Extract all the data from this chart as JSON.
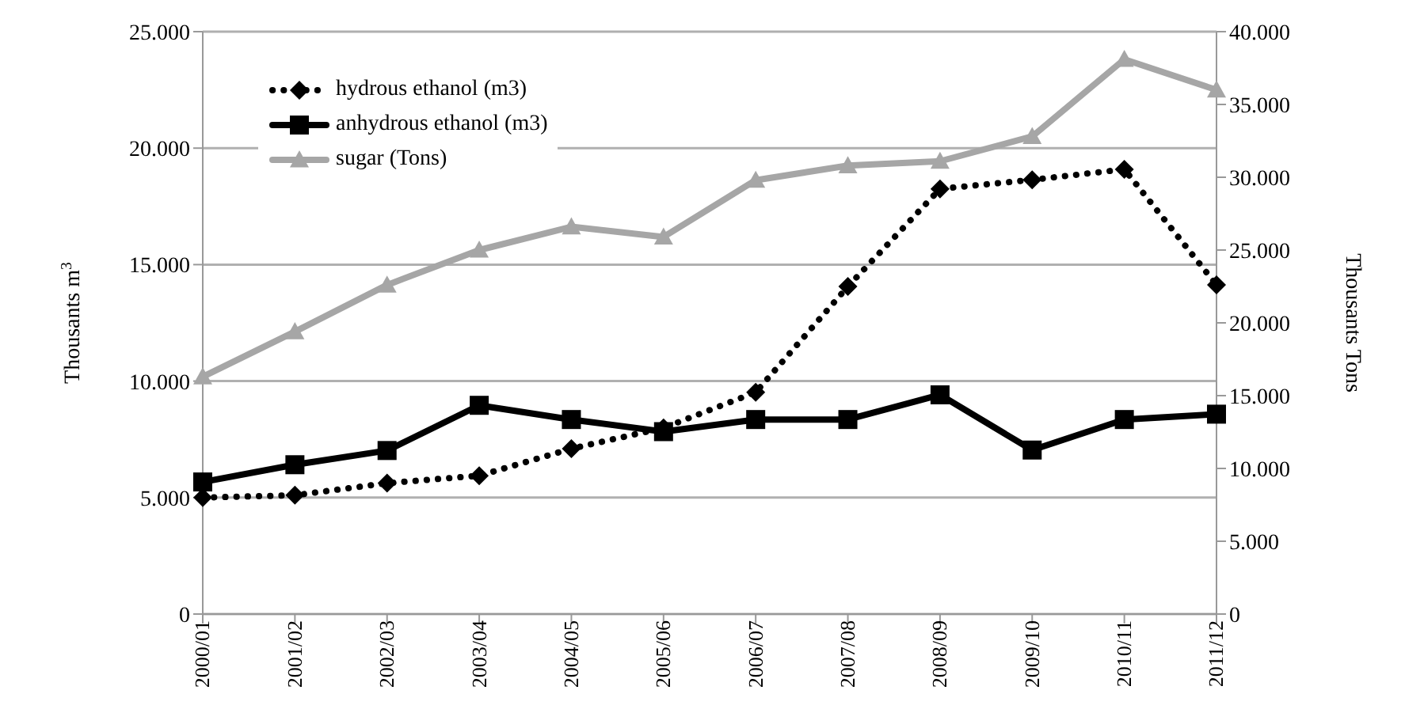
{
  "chart_data": {
    "type": "line",
    "categories": [
      "2000/01",
      "2001/02",
      "2002/03",
      "2003/04",
      "2004/05",
      "2005/06",
      "2006/07",
      "2007/08",
      "2008/09",
      "2009/10",
      "2010/11",
      "2011/12"
    ],
    "series": [
      {
        "name": "hydrous ethanol (m3)",
        "color": "#000000",
        "marker": "diamond",
        "line_style": "dotted",
        "values": [
          5000,
          5100,
          5620,
          5940,
          7100,
          7990,
          9520,
          14060,
          18250,
          18640,
          19090,
          14130
        ]
      },
      {
        "name": "anhydrous ethanol (m3)",
        "color": "#000000",
        "marker": "square",
        "line_style": "solid",
        "values": [
          5670,
          6410,
          7020,
          8960,
          8350,
          7830,
          8350,
          8350,
          9410,
          7040,
          8350,
          8580
        ]
      },
      {
        "name": "sugar (Tons)",
        "color": "#a6a6a6",
        "marker": "triangle",
        "line_style": "solid",
        "axis": "y2",
        "values": [
          16300,
          19400,
          22600,
          25000,
          26600,
          25900,
          29800,
          30800,
          31100,
          32800,
          38100,
          36000
        ]
      }
    ],
    "ylabel": "Thousants m$^{3}$",
    "y2label": "Thousants Tons",
    "ylim": [
      0,
      25000
    ],
    "yticks": [
      0,
      {
        "value": 5000,
        "label": "5.000"
      },
      {
        "value": 10000,
        "label": "10.000"
      },
      {
        "value": 15000,
        "label": "15.000"
      },
      {
        "value": 20000,
        "label": "20.000"
      },
      {
        "value": 25000,
        "label": "25.000"
      }
    ],
    "y2lim": [
      0,
      40000
    ],
    "y2ticks": [
      0,
      {
        "value": 5000,
        "label": "5.000"
      },
      {
        "value": 10000,
        "label": "10.000"
      },
      {
        "value": 15000,
        "label": "15.000"
      },
      {
        "value": 20000,
        "label": "20.000"
      },
      {
        "value": 25000,
        "label": "25.000"
      },
      {
        "value": 30000,
        "label": "30.000"
      },
      {
        "value": 35000,
        "label": "35.000"
      },
      {
        "value": 40000,
        "label": "40.000"
      }
    ],
    "grid": "y",
    "legend": "top left"
  }
}
